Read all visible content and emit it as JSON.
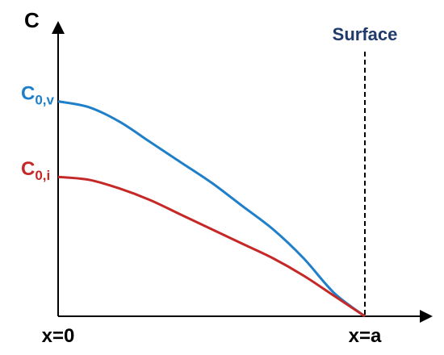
{
  "chart_data": {
    "type": "line",
    "title": "",
    "ylabel": "C",
    "xlabel": "",
    "x_tick_labels": {
      "start": "x=0",
      "end": "x=a"
    },
    "annotation": {
      "text": "Surface",
      "color": "#1f3a6b"
    },
    "series": [
      {
        "name": "C0,v",
        "label_main": "C",
        "label_sub": "0,v",
        "color": "#1f7fc8",
        "points": [
          [
            0,
            0.74
          ],
          [
            0.1,
            0.72
          ],
          [
            0.2,
            0.67
          ],
          [
            0.3,
            0.6
          ],
          [
            0.4,
            0.53
          ],
          [
            0.5,
            0.46
          ],
          [
            0.6,
            0.38
          ],
          [
            0.7,
            0.3
          ],
          [
            0.8,
            0.2
          ],
          [
            0.9,
            0.08
          ],
          [
            1.0,
            0.0
          ]
        ]
      },
      {
        "name": "C0,i",
        "label_main": "C",
        "label_sub": "0,i",
        "color": "#c62828",
        "points": [
          [
            0,
            0.48
          ],
          [
            0.1,
            0.47
          ],
          [
            0.2,
            0.44
          ],
          [
            0.3,
            0.4
          ],
          [
            0.4,
            0.35
          ],
          [
            0.5,
            0.3
          ],
          [
            0.6,
            0.25
          ],
          [
            0.7,
            0.2
          ],
          [
            0.8,
            0.14
          ],
          [
            0.9,
            0.07
          ],
          [
            1.0,
            0.0
          ]
        ]
      }
    ],
    "xlim": [
      0,
      1
    ],
    "ylim": [
      0,
      1
    ],
    "grid": false,
    "legend": "none"
  }
}
